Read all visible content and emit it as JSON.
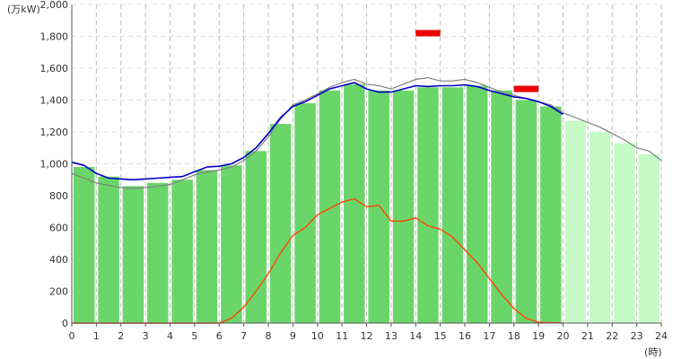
{
  "chart_data": {
    "type": "bar",
    "y_unit_label": "(万kW)",
    "x_unit_label": "(時)",
    "xlim": [
      0,
      24
    ],
    "ylim": [
      0,
      2000
    ],
    "x_ticks": [
      "0",
      "1",
      "2",
      "3",
      "4",
      "5",
      "6",
      "7",
      "8",
      "9",
      "10",
      "11",
      "12",
      "13",
      "14",
      "15",
      "16",
      "17",
      "18",
      "19",
      "20",
      "21",
      "22",
      "23",
      "24"
    ],
    "y_ticks": [
      "0",
      "200",
      "400",
      "600",
      "800",
      "1,000",
      "1,200",
      "1,400",
      "1,600",
      "1,800",
      "2,000"
    ],
    "y_tick_values": [
      0,
      200,
      400,
      600,
      800,
      1000,
      1200,
      1400,
      1600,
      1800,
      2000
    ],
    "grid": true,
    "colors": {
      "actual_bar": "#6ad66a",
      "forecast_bar": "#c6fac6",
      "actual_demand_line": "#0000cc",
      "previous_day_line": "#808080",
      "solar_line": "#ff4400",
      "peak_marker": "#ee0000"
    },
    "bars_actual": [
      980,
      920,
      860,
      880,
      900,
      960,
      990,
      1080,
      1250,
      1380,
      1460,
      1500,
      1460,
      1460,
      1480,
      1480,
      1490,
      1460,
      1400,
      1360
    ],
    "bars_forecast": [
      1270,
      1200,
      1130,
      1060
    ],
    "series": [
      {
        "key": "actual_demand",
        "points": [
          [
            0,
            1010
          ],
          [
            0.5,
            990
          ],
          [
            1,
            940
          ],
          [
            1.5,
            910
          ],
          [
            2,
            905
          ],
          [
            2.5,
            900
          ],
          [
            3,
            905
          ],
          [
            3.5,
            910
          ],
          [
            4,
            915
          ],
          [
            4.5,
            920
          ],
          [
            5,
            950
          ],
          [
            5.5,
            980
          ],
          [
            6,
            985
          ],
          [
            6.5,
            1000
          ],
          [
            7,
            1040
          ],
          [
            7.5,
            1100
          ],
          [
            8,
            1190
          ],
          [
            8.5,
            1290
          ],
          [
            9,
            1360
          ],
          [
            9.5,
            1390
          ],
          [
            10,
            1430
          ],
          [
            10.5,
            1470
          ],
          [
            11,
            1490
          ],
          [
            11.5,
            1510
          ],
          [
            12,
            1470
          ],
          [
            12.5,
            1450
          ],
          [
            13,
            1450
          ],
          [
            13.5,
            1470
          ],
          [
            14,
            1490
          ],
          [
            14.5,
            1485
          ],
          [
            15,
            1490
          ],
          [
            15.5,
            1490
          ],
          [
            16,
            1495
          ],
          [
            16.5,
            1485
          ],
          [
            17,
            1460
          ],
          [
            17.5,
            1440
          ],
          [
            18,
            1420
          ],
          [
            18.5,
            1410
          ],
          [
            19,
            1390
          ],
          [
            19.5,
            1360
          ],
          [
            20,
            1310
          ]
        ]
      },
      {
        "key": "previous_day",
        "points": [
          [
            0,
            940
          ],
          [
            0.5,
            910
          ],
          [
            1,
            880
          ],
          [
            1.5,
            865
          ],
          [
            2,
            850
          ],
          [
            2.5,
            845
          ],
          [
            3,
            850
          ],
          [
            3.5,
            860
          ],
          [
            4,
            870
          ],
          [
            4.5,
            900
          ],
          [
            5,
            930
          ],
          [
            5.5,
            950
          ],
          [
            6,
            960
          ],
          [
            6.5,
            980
          ],
          [
            7,
            1020
          ],
          [
            7.5,
            1080
          ],
          [
            8,
            1170
          ],
          [
            8.5,
            1280
          ],
          [
            9,
            1370
          ],
          [
            9.5,
            1400
          ],
          [
            10,
            1440
          ],
          [
            10.5,
            1480
          ],
          [
            11,
            1510
          ],
          [
            11.5,
            1530
          ],
          [
            12,
            1500
          ],
          [
            12.5,
            1490
          ],
          [
            13,
            1470
          ],
          [
            13.5,
            1500
          ],
          [
            14,
            1530
          ],
          [
            14.5,
            1540
          ],
          [
            15,
            1520
          ],
          [
            15.5,
            1520
          ],
          [
            16,
            1530
          ],
          [
            16.5,
            1510
          ],
          [
            17,
            1480
          ],
          [
            17.5,
            1450
          ],
          [
            18,
            1430
          ],
          [
            18.5,
            1410
          ],
          [
            19,
            1390
          ],
          [
            19.5,
            1370
          ],
          [
            20,
            1320
          ],
          [
            20.5,
            1290
          ],
          [
            21,
            1260
          ],
          [
            21.5,
            1230
          ],
          [
            22,
            1190
          ],
          [
            22.5,
            1150
          ],
          [
            23,
            1100
          ],
          [
            23.5,
            1080
          ],
          [
            24,
            1020
          ]
        ]
      },
      {
        "key": "solar",
        "points": [
          [
            0,
            0
          ],
          [
            6,
            0
          ],
          [
            6.5,
            30
          ],
          [
            7,
            100
          ],
          [
            7.5,
            200
          ],
          [
            8,
            310
          ],
          [
            8.5,
            440
          ],
          [
            9,
            550
          ],
          [
            9.5,
            600
          ],
          [
            10,
            680
          ],
          [
            10.5,
            720
          ],
          [
            11,
            760
          ],
          [
            11.5,
            780
          ],
          [
            12,
            730
          ],
          [
            12.5,
            740
          ],
          [
            13,
            640
          ],
          [
            13.5,
            640
          ],
          [
            14,
            660
          ],
          [
            14.5,
            610
          ],
          [
            15,
            590
          ],
          [
            15.5,
            540
          ],
          [
            16,
            460
          ],
          [
            16.5,
            380
          ],
          [
            17,
            280
          ],
          [
            17.5,
            180
          ],
          [
            18,
            90
          ],
          [
            18.5,
            30
          ],
          [
            19,
            5
          ],
          [
            20,
            0
          ]
        ]
      }
    ],
    "peak_markers": [
      {
        "x_start": 14,
        "x_end": 15,
        "y": 1820
      },
      {
        "x_start": 18,
        "x_end": 19,
        "y": 1470
      }
    ]
  }
}
